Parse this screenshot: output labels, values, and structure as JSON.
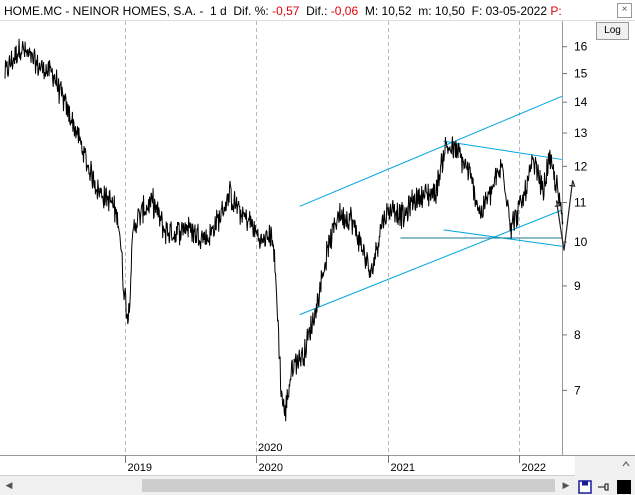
{
  "header": {
    "ticker": "HOME.MC",
    "company": "NEINOR HOMES, S.A. -",
    "period": "1 d",
    "dif_pct_label": "Dif. %:",
    "dif_pct": "-0,57",
    "dif_label": "Dif.:",
    "dif": "-0,06",
    "max_label": "M:",
    "max": "10,52",
    "min_label": "m:",
    "min": "10,50",
    "date_label": "F:",
    "date": "03-05-2022",
    "flag": "P:"
  },
  "controls": {
    "log_label": "Log",
    "close": "×"
  },
  "colors": {
    "price": "#000000",
    "trendline": "#00a6e0",
    "grid": "#b8b8b8",
    "negative": "#e0000a"
  },
  "chart_data": {
    "type": "line",
    "y_scale": "log",
    "ylim": [
      6,
      17
    ],
    "y_ticks": [
      7,
      8,
      9,
      10,
      11,
      12,
      13,
      14,
      15,
      16
    ],
    "y_tick_labels": [
      "7",
      "8",
      "9",
      "10",
      "11",
      "12",
      "13",
      "14",
      "15",
      "16"
    ],
    "x_tick_labels": [
      "2019",
      "2020",
      "2021",
      "2022"
    ],
    "x_ticks": [
      "2019-01-01",
      "2020-01-01",
      "2021-01-01",
      "2022-01-01"
    ],
    "x_marker_label": "2020",
    "xlim": [
      "2018-02-01",
      "2022-05-06"
    ],
    "grid": true,
    "series": [
      {
        "x": [
          "2018-02-01",
          "2018-03-15",
          "2018-05-01",
          "2018-06-15",
          "2018-07-15",
          "2018-08-20",
          "2018-09-20",
          "2018-10-20",
          "2018-11-25",
          "2018-12-15",
          "2018-12-28",
          "2019-01-10",
          "2019-01-25",
          "2019-02-20",
          "2019-03-20",
          "2019-04-20",
          "2019-05-20",
          "2019-06-20",
          "2019-07-20",
          "2019-08-20",
          "2019-09-20",
          "2019-10-20",
          "2019-11-20",
          "2019-12-15",
          "2020-01-15",
          "2020-02-15",
          "2020-02-25",
          "2020-03-10",
          "2020-03-20",
          "2020-04-10",
          "2020-05-15",
          "2020-06-15",
          "2020-07-15",
          "2020-08-15",
          "2020-09-20",
          "2020-10-20",
          "2020-11-15",
          "2020-12-15",
          "2021-01-15",
          "2021-02-15",
          "2021-03-15",
          "2021-04-15",
          "2021-05-15",
          "2021-06-10",
          "2021-07-15",
          "2021-08-15",
          "2021-09-15",
          "2021-10-15",
          "2021-11-15",
          "2021-12-10",
          "2022-01-10",
          "2022-02-10",
          "2022-03-10",
          "2022-03-25",
          "2022-04-15",
          "2022-05-03"
        ],
        "y": [
          15.0,
          16.0,
          15.3,
          15.0,
          14.0,
          13.0,
          12.0,
          11.3,
          11.0,
          10.5,
          9.0,
          8.3,
          10.4,
          10.8,
          11.0,
          10.3,
          10.2,
          10.4,
          10.2,
          10.1,
          10.6,
          11.2,
          10.7,
          10.5,
          10.0,
          10.2,
          9.0,
          7.0,
          6.6,
          7.4,
          7.7,
          8.5,
          9.7,
          10.7,
          10.6,
          9.9,
          9.2,
          10.5,
          10.9,
          10.6,
          11.1,
          11.2,
          11.3,
          12.6,
          12.4,
          11.8,
          10.7,
          11.3,
          12.0,
          10.4,
          11.0,
          12.1,
          11.3,
          12.2,
          11.5,
          10.5
        ]
      }
    ],
    "trendlines": [
      {
        "from": [
          "2020-05-01",
          10.9
        ],
        "to": [
          "2022-04-30",
          14.2
        ]
      },
      {
        "from": [
          "2020-05-01",
          8.4
        ],
        "to": [
          "2022-04-30",
          10.8
        ]
      },
      {
        "from": [
          "2021-06-05",
          12.75
        ],
        "to": [
          "2022-04-30",
          12.2
        ]
      },
      {
        "from": [
          "2021-06-05",
          10.3
        ],
        "to": [
          "2022-04-30",
          9.9
        ]
      },
      {
        "from": [
          "2021-02-05",
          10.1
        ],
        "to": [
          "2022-04-30",
          10.1
        ]
      }
    ],
    "projection_arrows": [
      {
        "from": [
          "2022-05-06",
          9.8
        ],
        "to": [
          "2022-04-15",
          11.05
        ]
      },
      {
        "from": [
          "2022-05-06",
          9.8
        ],
        "to": [
          "2022-05-30",
          11.6
        ]
      }
    ]
  }
}
